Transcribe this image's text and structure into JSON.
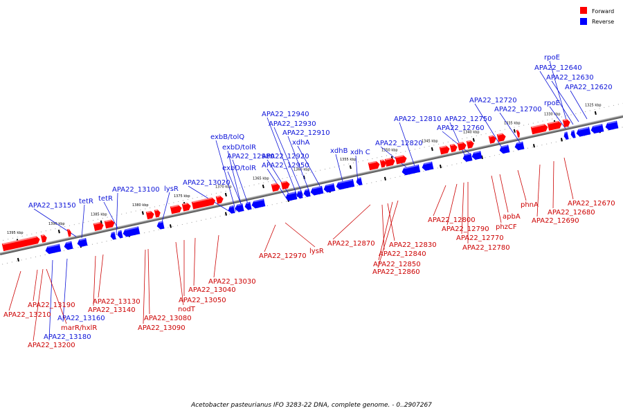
{
  "legend": [
    {
      "label": "Forward",
      "color": "#ff0000"
    },
    {
      "label": "Reverse",
      "color": "#0000ff"
    }
  ],
  "caption": "Acetobacter pasteurianus IFO 3283-22 DNA, complete genome. - 0..2907267",
  "colors": {
    "forward": "#ff0000",
    "reverse": "#0000ff",
    "forward_label": "#cc0000",
    "reverse_label": "#0b12d8",
    "backbone": "#8a8a8a"
  },
  "scale_ticks": [
    "1395 kbp",
    "1390 kbp",
    "1385 kbp",
    "1380 kbp",
    "1375 kbp",
    "1370 kbp",
    "1365 kbp",
    "1360 kbp",
    "1355 kbp",
    "1350 kbp",
    "1345 kbp",
    "1340 kbp",
    "1335 kbp",
    "1330 kbp",
    "1325 kbp"
  ],
  "reverse_genes": [
    "rpoE",
    "APA22_12640",
    "APA22_12630",
    "APA22_12620",
    "rpoE",
    "APA22_12720",
    "APA22_12700",
    "APA22_12750",
    "APA22_12760",
    "APA22_12810",
    "APA22_12820",
    "APA22_12940",
    "APA22_12930",
    "APA22_12910",
    "xdhA",
    "exbB/tolQ",
    "exbD/tolR",
    "APA22_12980",
    "APA22_12920",
    "xdhB",
    "xdh C",
    "exbD/tolR",
    "APA22_12950",
    "APA22_13020",
    "lysR",
    "APA22_13100",
    "tetR",
    "tetR",
    "APA22_13150",
    "APA22_13160",
    "APA22_13180"
  ],
  "forward_genes": [
    "APA22_12670",
    "APA22_12680",
    "APA22_12690",
    "phnA",
    "apbA",
    "phzCF",
    "APA22_12800",
    "APA22_12790",
    "APA22_12770",
    "APA22_12780",
    "APA22_12830",
    "APA22_12840",
    "APA22_12850",
    "APA22_12860",
    "APA22_12870",
    "lysR",
    "APA22_12970",
    "APA22_13030",
    "APA22_13040",
    "APA22_13050",
    "nodT",
    "APA22_13080",
    "APA22_13090",
    "APA22_13130",
    "APA22_13140",
    "APA22_13190",
    "APA22_13210",
    "marR/hxlR",
    "APA22_13200"
  ]
}
